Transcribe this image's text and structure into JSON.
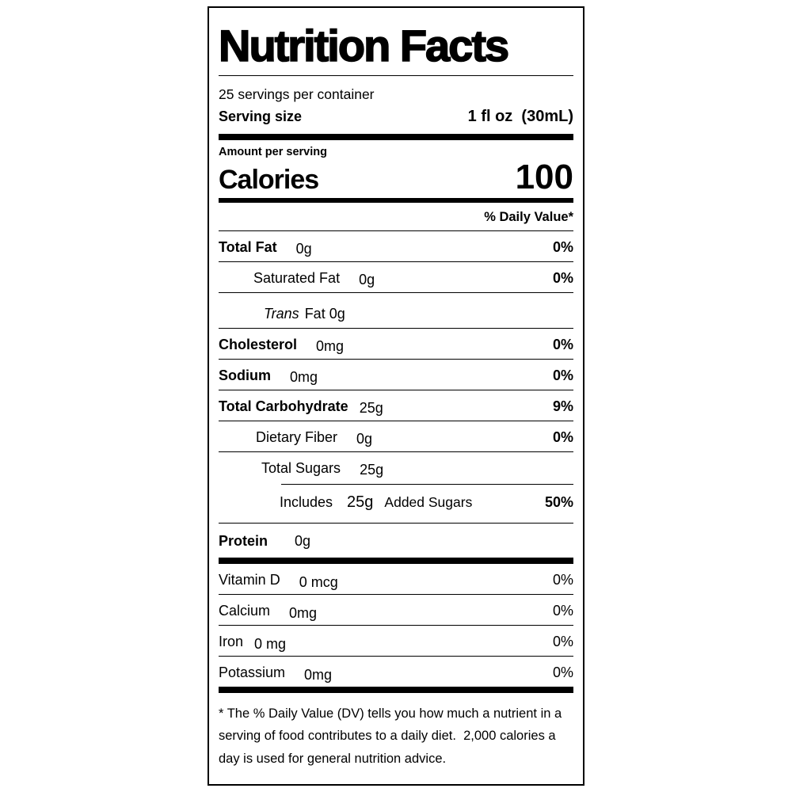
{
  "label": {
    "title": "Nutrition Facts",
    "servings_per_container": "25 servings per container",
    "serving_size": {
      "label": "Serving size",
      "value": "1 fl oz  (30mL)"
    },
    "amount_per_serving": "Amount per serving",
    "calories": {
      "label": "Calories",
      "value": "100"
    },
    "daily_value_header": "% Daily Value*",
    "rows": [
      {
        "name": "Total Fat",
        "amount": "0g",
        "dv": "0%"
      },
      {
        "name": "Saturated Fat",
        "amount": "0g",
        "dv": "0%"
      },
      {
        "name_italic": "Trans",
        "name_rest": "Fat 0g"
      },
      {
        "name": "Cholesterol",
        "amount": "0mg",
        "dv": "0%"
      },
      {
        "name": "Sodium",
        "amount": "0mg",
        "dv": "0%"
      },
      {
        "name": "Total Carbohydrate",
        "amount": "25g",
        "dv": "9%"
      },
      {
        "name": "Dietary Fiber",
        "amount": "0g",
        "dv": "0%"
      },
      {
        "name": "Total Sugars",
        "amount": "25g"
      },
      {
        "prefix": "Includes",
        "amount": "25g",
        "suffix": "Added Sugars",
        "dv": "50%"
      },
      {
        "name": "Protein",
        "amount": "0g"
      },
      {
        "name": "Vitamin D",
        "amount": "0 mcg",
        "dv": "0%"
      },
      {
        "name": "Calcium",
        "amount": "0mg",
        "dv": "0%"
      },
      {
        "name": "Iron",
        "amount": "0 mg",
        "dv": "0%"
      },
      {
        "name": "Potassium",
        "amount": "0mg",
        "dv": "0%"
      }
    ],
    "footnote": "* The % Daily Value (DV) tells you how much a nutrient in a serving of food contributes to a daily diet.  2,000 calories a day is used for general nutrition advice."
  }
}
